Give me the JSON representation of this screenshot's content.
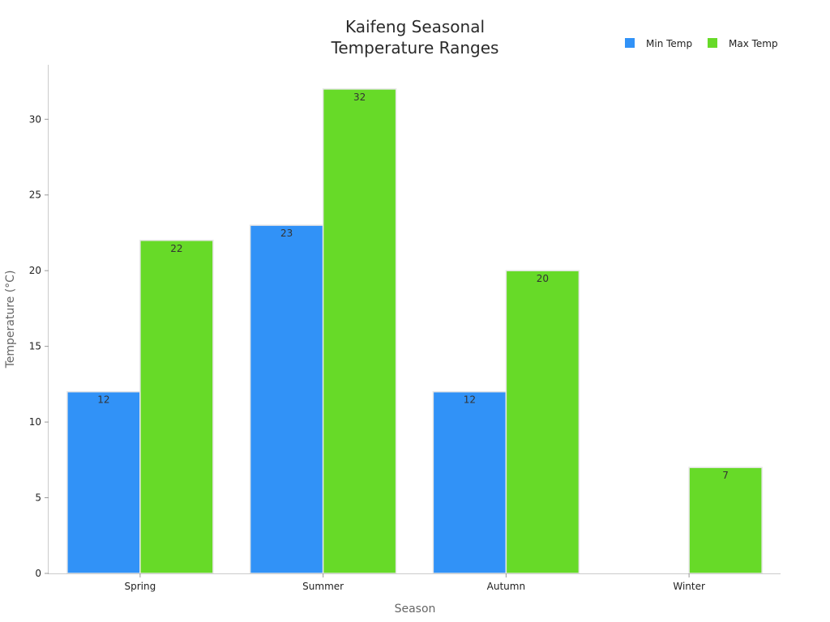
{
  "chart_data": {
    "type": "bar",
    "title": [
      "Kaifeng Seasonal",
      "Temperature Ranges"
    ],
    "xlabel": "Season",
    "ylabel": "Temperature (°C)",
    "categories": [
      "Spring",
      "Summer",
      "Autumn",
      "Winter"
    ],
    "series": [
      {
        "name": "Min Temp",
        "values": [
          12,
          23,
          12,
          0
        ],
        "color": "#3192f7"
      },
      {
        "name": "Max Temp",
        "values": [
          22,
          32,
          20,
          7
        ],
        "color": "#67da28"
      }
    ],
    "value_labels": [
      [
        "12",
        "23",
        "12",
        ""
      ],
      [
        "22",
        "32",
        "20",
        "7"
      ]
    ],
    "ylim": [
      0,
      33.6
    ],
    "yticks": [
      0,
      5,
      10,
      15,
      20,
      25,
      30
    ],
    "grid": false,
    "legend_position": "top-right"
  }
}
